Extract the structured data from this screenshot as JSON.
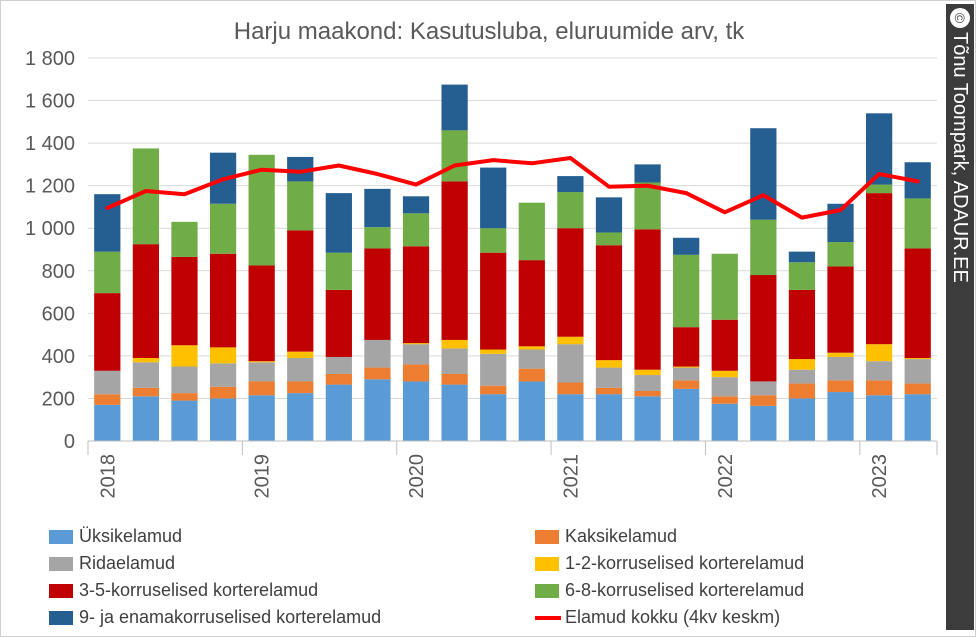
{
  "credit": {
    "symbol": "©",
    "text": "Tõnu Toompark, ADAUR.EE"
  },
  "chart_data": {
    "type": "bar",
    "stacked": true,
    "title": "Harju maakond: Kasutusluba, eluruumide arv, tk",
    "xlabel": "",
    "ylabel": "",
    "ylim": [
      0,
      1800
    ],
    "yticks": [
      0,
      200,
      400,
      600,
      800,
      1000,
      1200,
      1400,
      1600,
      1800
    ],
    "ytick_labels": [
      "0",
      "200",
      "400",
      "600",
      "800",
      "1 000",
      "1 200",
      "1 400",
      "1 600",
      "1 800"
    ],
    "grid": true,
    "legend_position": "bottom",
    "year_labels": [
      {
        "label": "2018",
        "index": 0
      },
      {
        "label": "2019",
        "index": 4
      },
      {
        "label": "2020",
        "index": 8
      },
      {
        "label": "2021",
        "index": 12
      },
      {
        "label": "2022",
        "index": 16
      },
      {
        "label": "2023",
        "index": 20
      }
    ],
    "categories": [
      "2018 Q1",
      "2018 Q2",
      "2018 Q3",
      "2018 Q4",
      "2019 Q1",
      "2019 Q2",
      "2019 Q3",
      "2019 Q4",
      "2020 Q1",
      "2020 Q2",
      "2020 Q3",
      "2020 Q4",
      "2021 Q1",
      "2021 Q2",
      "2021 Q3",
      "2021 Q4",
      "2022 Q1",
      "2022 Q2",
      "2022 Q3",
      "2022 Q4",
      "2023 Q1",
      "2023 Q2"
    ],
    "series": [
      {
        "name": "Üksikelamud",
        "color": "#5b9bd5",
        "values": [
          170,
          210,
          190,
          200,
          215,
          225,
          265,
          290,
          280,
          265,
          220,
          280,
          220,
          220,
          210,
          245,
          175,
          165,
          200,
          230,
          215,
          220
        ]
      },
      {
        "name": "Kaksikelamud",
        "color": "#ed7d31",
        "values": [
          50,
          40,
          35,
          55,
          65,
          55,
          50,
          55,
          80,
          50,
          40,
          60,
          55,
          30,
          25,
          40,
          35,
          50,
          70,
          55,
          70,
          50
        ]
      },
      {
        "name": "Ridaelamud",
        "color": "#a5a5a5",
        "values": [
          110,
          120,
          125,
          110,
          90,
          110,
          80,
          130,
          95,
          120,
          150,
          90,
          180,
          95,
          75,
          60,
          90,
          65,
          65,
          110,
          90,
          115
        ]
      },
      {
        "name": "1-2-korruselised korterelamud",
        "color": "#ffc000",
        "values": [
          0,
          20,
          100,
          75,
          5,
          30,
          0,
          0,
          5,
          40,
          20,
          15,
          35,
          35,
          25,
          5,
          30,
          0,
          50,
          20,
          80,
          5
        ]
      },
      {
        "name": "3-5-korruselised korterelamud",
        "color": "#c00000",
        "values": [
          365,
          535,
          415,
          440,
          450,
          570,
          315,
          430,
          455,
          745,
          455,
          405,
          510,
          540,
          660,
          185,
          240,
          500,
          325,
          405,
          710,
          515
        ]
      },
      {
        "name": "6-8-korruselised korterelamud",
        "color": "#70ad47",
        "values": [
          195,
          450,
          165,
          235,
          520,
          230,
          175,
          100,
          155,
          240,
          115,
          270,
          170,
          60,
          220,
          340,
          310,
          260,
          130,
          115,
          40,
          235
        ]
      },
      {
        "name": "9- ja enamakorruselised korterelamud",
        "color": "#255e91",
        "values": [
          270,
          0,
          0,
          240,
          0,
          115,
          280,
          180,
          80,
          215,
          285,
          0,
          75,
          165,
          85,
          80,
          0,
          430,
          50,
          180,
          335,
          170
        ]
      }
    ],
    "line_series": {
      "name": "Elamud kokku (4kv keskm)",
      "color": "#ff0000",
      "values": [
        1095,
        1175,
        1160,
        1230,
        1275,
        1265,
        1295,
        1255,
        1205,
        1295,
        1320,
        1305,
        1330,
        1195,
        1200,
        1165,
        1075,
        1155,
        1050,
        1085,
        1255,
        1220
      ]
    }
  }
}
